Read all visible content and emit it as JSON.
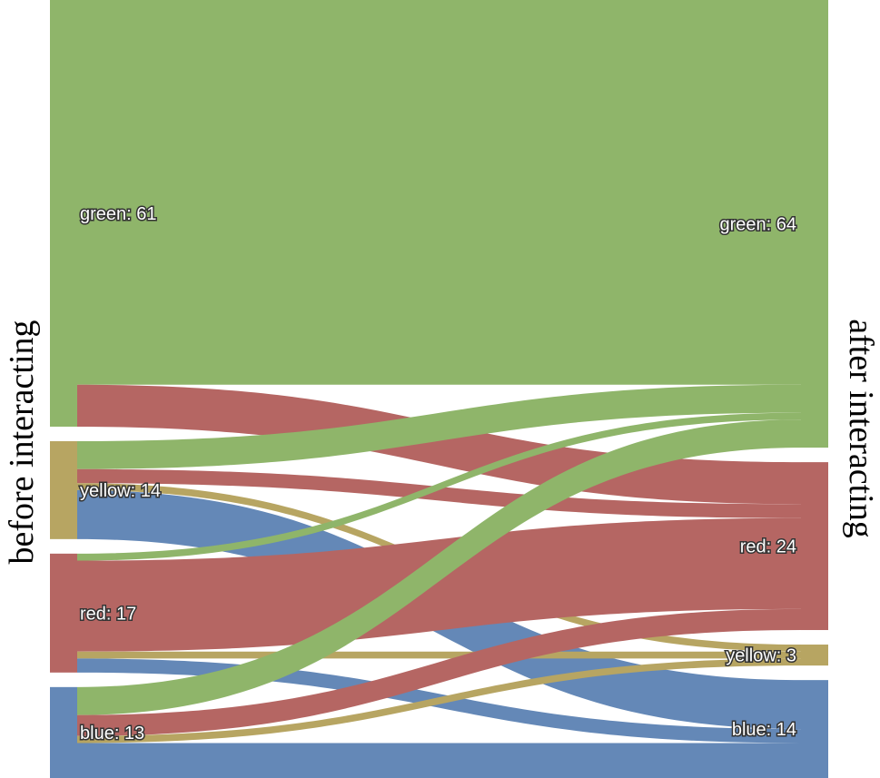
{
  "chart_data": {
    "type": "sankey",
    "left_title": "before interacting",
    "right_title": "after interacting",
    "left_nodes": [
      {
        "key": "green",
        "label": "green: 61",
        "value": 61
      },
      {
        "key": "yellow",
        "label": "yellow: 14",
        "value": 14
      },
      {
        "key": "red",
        "label": "red: 17",
        "value": 17
      },
      {
        "key": "blue",
        "label": "blue: 13",
        "value": 13
      }
    ],
    "right_nodes": [
      {
        "key": "green",
        "label": "green: 64",
        "value": 64
      },
      {
        "key": "red",
        "label": "red: 24",
        "value": 24
      },
      {
        "key": "yellow",
        "label": "yellow: 3",
        "value": 3
      },
      {
        "key": "blue",
        "label": "blue: 14",
        "value": 14
      }
    ],
    "flows": [
      {
        "source": "green",
        "target": "green",
        "value": 55
      },
      {
        "source": "green",
        "target": "red",
        "value": 6
      },
      {
        "source": "yellow",
        "target": "green",
        "value": 4
      },
      {
        "source": "yellow",
        "target": "red",
        "value": 2
      },
      {
        "source": "yellow",
        "target": "yellow",
        "value": 1
      },
      {
        "source": "yellow",
        "target": "blue",
        "value": 7
      },
      {
        "source": "red",
        "target": "green",
        "value": 1
      },
      {
        "source": "red",
        "target": "red",
        "value": 13
      },
      {
        "source": "red",
        "target": "yellow",
        "value": 1
      },
      {
        "source": "red",
        "target": "blue",
        "value": 2
      },
      {
        "source": "blue",
        "target": "green",
        "value": 4
      },
      {
        "source": "blue",
        "target": "red",
        "value": 3
      },
      {
        "source": "blue",
        "target": "yellow",
        "value": 1
      },
      {
        "source": "blue",
        "target": "blue",
        "value": 5
      }
    ],
    "colors": {
      "green": "#8fb56a",
      "yellow": "#b7a562",
      "red": "#b56663",
      "blue": "#6488b7"
    }
  }
}
